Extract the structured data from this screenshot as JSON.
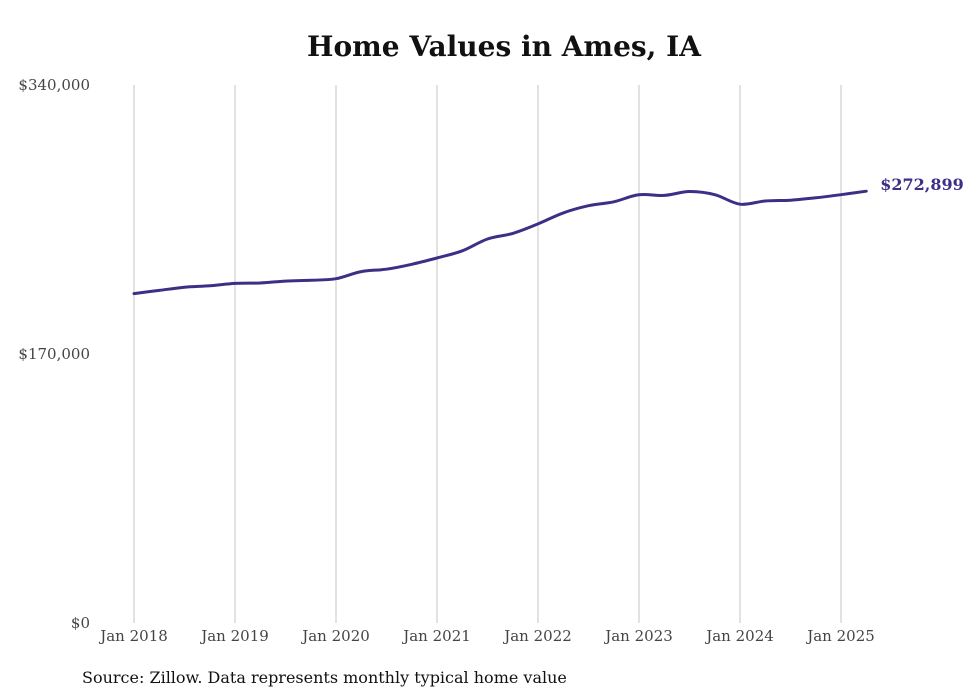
{
  "chart_data": {
    "type": "line",
    "title": "Home Values in Ames, IA",
    "source": "Source: Zillow. Data represents monthly typical home value",
    "ylim": [
      0,
      340000
    ],
    "y_ticks": [
      {
        "value": 0,
        "label": "$0"
      },
      {
        "value": 170000,
        "label": "$170,000"
      },
      {
        "value": 340000,
        "label": "$340,000"
      }
    ],
    "x_range": [
      "2018-01",
      "2025-04"
    ],
    "x_ticks": [
      {
        "date": "2018-01",
        "label": "Jan 2018"
      },
      {
        "date": "2019-01",
        "label": "Jan 2019"
      },
      {
        "date": "2020-01",
        "label": "Jan 2020"
      },
      {
        "date": "2021-01",
        "label": "Jan 2021"
      },
      {
        "date": "2022-01",
        "label": "Jan 2022"
      },
      {
        "date": "2023-01",
        "label": "Jan 2023"
      },
      {
        "date": "2024-01",
        "label": "Jan 2024"
      },
      {
        "date": "2025-01",
        "label": "Jan 2025"
      }
    ],
    "grid": {
      "vertical": true,
      "horizontal": false
    },
    "line_color": "#3d2f86",
    "grid_color": "#c4c4c4",
    "series": [
      {
        "values": [
          {
            "date": "2018-01",
            "value": 208200
          },
          {
            "date": "2018-04",
            "value": 210200
          },
          {
            "date": "2018-07",
            "value": 212200
          },
          {
            "date": "2018-10",
            "value": 213100
          },
          {
            "date": "2019-01",
            "value": 214600
          },
          {
            "date": "2019-04",
            "value": 214900
          },
          {
            "date": "2019-07",
            "value": 216100
          },
          {
            "date": "2019-10",
            "value": 216600
          },
          {
            "date": "2020-01",
            "value": 217600
          },
          {
            "date": "2020-04",
            "value": 222100
          },
          {
            "date": "2020-07",
            "value": 223600
          },
          {
            "date": "2020-10",
            "value": 226700
          },
          {
            "date": "2021-01",
            "value": 230700
          },
          {
            "date": "2021-04",
            "value": 235200
          },
          {
            "date": "2021-07",
            "value": 242700
          },
          {
            "date": "2021-10",
            "value": 246200
          },
          {
            "date": "2022-01",
            "value": 252200
          },
          {
            "date": "2022-04",
            "value": 259200
          },
          {
            "date": "2022-07",
            "value": 263700
          },
          {
            "date": "2022-10",
            "value": 266200
          },
          {
            "date": "2023-01",
            "value": 270700
          },
          {
            "date": "2023-04",
            "value": 270200
          },
          {
            "date": "2023-07",
            "value": 272700
          },
          {
            "date": "2023-10",
            "value": 270700
          },
          {
            "date": "2024-01",
            "value": 264700
          },
          {
            "date": "2024-04",
            "value": 266700
          },
          {
            "date": "2024-07",
            "value": 267200
          },
          {
            "date": "2024-10",
            "value": 268700
          },
          {
            "date": "2025-01",
            "value": 270700
          },
          {
            "date": "2025-04",
            "value": 272899
          }
        ]
      }
    ],
    "end_label": "$272,899"
  }
}
